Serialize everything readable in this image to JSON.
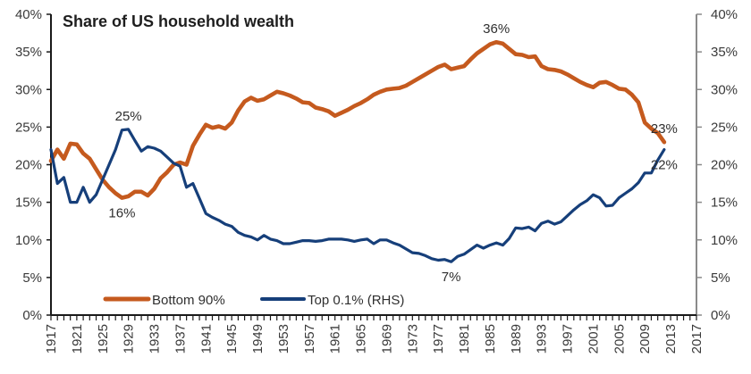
{
  "chart_data": {
    "type": "line",
    "title": "Share of US household wealth",
    "xlabel": "",
    "ylabel": "",
    "ylabel_right": "",
    "x": [
      1917,
      1918,
      1919,
      1920,
      1921,
      1922,
      1923,
      1924,
      1925,
      1926,
      1927,
      1928,
      1929,
      1930,
      1931,
      1932,
      1933,
      1934,
      1935,
      1936,
      1937,
      1938,
      1939,
      1940,
      1941,
      1942,
      1943,
      1944,
      1945,
      1946,
      1947,
      1948,
      1949,
      1950,
      1951,
      1952,
      1953,
      1954,
      1955,
      1956,
      1957,
      1958,
      1959,
      1960,
      1961,
      1962,
      1963,
      1964,
      1965,
      1966,
      1967,
      1968,
      1969,
      1970,
      1971,
      1972,
      1973,
      1974,
      1975,
      1976,
      1977,
      1978,
      1979,
      1980,
      1981,
      1982,
      1983,
      1984,
      1985,
      1986,
      1987,
      1988,
      1989,
      1990,
      1991,
      1992,
      1993,
      1994,
      1995,
      1996,
      1997,
      1998,
      1999,
      2000,
      2001,
      2002,
      2003,
      2004,
      2005,
      2006,
      2007,
      2008,
      2009,
      2010,
      2011,
      2012
    ],
    "xlim": [
      1917,
      2017
    ],
    "x_ticks": [
      "1917",
      "1921",
      "1925",
      "1929",
      "1933",
      "1937",
      "1941",
      "1945",
      "1949",
      "1953",
      "1957",
      "1961",
      "1965",
      "1969",
      "1973",
      "1977",
      "1981",
      "1985",
      "1989",
      "1993",
      "1997",
      "2001",
      "2005",
      "2009",
      "2013",
      "2017"
    ],
    "ylim": [
      0,
      40
    ],
    "ylim_right": [
      0,
      40
    ],
    "y_ticks": [
      "0%",
      "5%",
      "10%",
      "15%",
      "20%",
      "25%",
      "30%",
      "35%",
      "40%"
    ],
    "y_ticks_right": [
      "0%",
      "5%",
      "10%",
      "15%",
      "20%",
      "25%",
      "30%",
      "35%",
      "40%"
    ],
    "grid": false,
    "legend_position": "bottom-left",
    "series": [
      {
        "name": "Bottom 90%",
        "axis": "left",
        "color": "#c55a1e",
        "values": [
          20.5,
          22,
          20.8,
          22.8,
          22.7,
          21.5,
          20.8,
          19.4,
          18,
          17,
          16.2,
          15.6,
          15.8,
          16.4,
          16.4,
          15.9,
          16.8,
          18.2,
          19,
          20,
          20.3,
          20,
          22.5,
          24,
          25.3,
          24.9,
          25.1,
          24.8,
          25.6,
          27.2,
          28.4,
          28.9,
          28.5,
          28.7,
          29.2,
          29.7,
          29.5,
          29.2,
          28.8,
          28.3,
          28.2,
          27.6,
          27.4,
          27.1,
          26.5,
          26.9,
          27.3,
          27.8,
          28.2,
          28.7,
          29.3,
          29.7,
          30,
          30.1,
          30.2,
          30.5,
          31,
          31.5,
          32,
          32.5,
          33,
          33.3,
          32.7,
          32.9,
          33.1,
          34,
          34.8,
          35.4,
          36,
          36.3,
          36.1,
          35.4,
          34.7,
          34.6,
          34.3,
          34.4,
          33.1,
          32.7,
          32.6,
          32.4,
          32,
          31.5,
          31,
          30.6,
          30.3,
          30.9,
          31,
          30.6,
          30.1,
          30,
          29.3,
          28.3,
          25.6,
          24.8,
          24.2,
          23
        ]
      },
      {
        "name": "Top 0.1% (RHS)",
        "axis": "right",
        "color": "#163f7a",
        "values": [
          22,
          17.5,
          18.3,
          15,
          15,
          17,
          15,
          16,
          18,
          20,
          22,
          24.6,
          24.7,
          23.2,
          21.8,
          22.4,
          22.2,
          21.8,
          21,
          20.2,
          19.8,
          17,
          17.5,
          15.5,
          13.5,
          13,
          12.6,
          12.1,
          11.8,
          11,
          10.6,
          10.4,
          10,
          10.6,
          10.1,
          9.9,
          9.5,
          9.5,
          9.7,
          9.9,
          9.9,
          9.8,
          9.9,
          10.1,
          10.1,
          10.1,
          10,
          9.8,
          10,
          10.1,
          9.5,
          10,
          10,
          9.6,
          9.3,
          8.8,
          8.3,
          8.2,
          7.9,
          7.5,
          7.3,
          7.4,
          7.1,
          7.8,
          8.1,
          8.7,
          9.3,
          8.9,
          9.3,
          9.6,
          9.3,
          10.2,
          11.6,
          11.5,
          11.7,
          11.2,
          12.2,
          12.5,
          12.1,
          12.4,
          13.2,
          14,
          14.7,
          15.2,
          16,
          15.6,
          14.5,
          14.6,
          15.6,
          16.2,
          16.8,
          17.6,
          18.9,
          18.9,
          20.6,
          22
        ]
      }
    ],
    "annotations": [
      {
        "text": "25%",
        "series": "Top 0.1% (RHS)",
        "x": 1929,
        "y": 24.7,
        "placement": "above"
      },
      {
        "text": "16%",
        "series": "Bottom 90%",
        "x": 1928,
        "y": 15.6,
        "placement": "below"
      },
      {
        "text": "36%",
        "series": "Bottom 90%",
        "x": 1986,
        "y": 36.3,
        "placement": "above"
      },
      {
        "text": "7%",
        "series": "Top 0.1% (RHS)",
        "x": 1979,
        "y": 7.1,
        "placement": "below"
      },
      {
        "text": "23%",
        "series": "Bottom 90%",
        "x": 2012,
        "y": 23,
        "placement": "above"
      },
      {
        "text": "22%",
        "series": "Top 0.1% (RHS)",
        "x": 2012,
        "y": 22,
        "placement": "below"
      }
    ]
  }
}
